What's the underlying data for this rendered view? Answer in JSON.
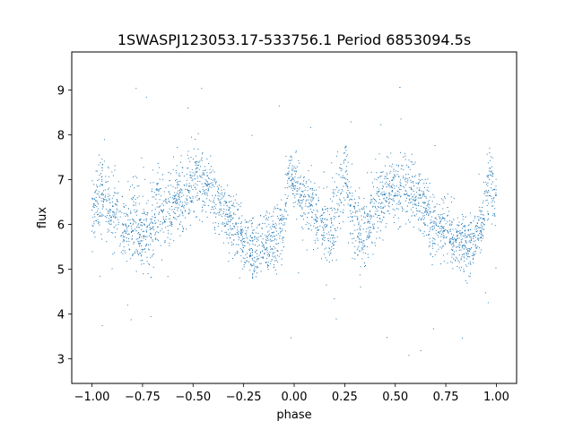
{
  "chart_data": {
    "type": "scatter",
    "title": "1SWASPJ123053.17-533756.1 Period 6853094.5s",
    "xlabel": "phase",
    "ylabel": "flux",
    "xlim": [
      -1.1,
      1.1
    ],
    "ylim": [
      2.45,
      9.85
    ],
    "xticks": [
      -1.0,
      -0.75,
      -0.5,
      -0.25,
      0.0,
      0.25,
      0.5,
      0.75,
      1.0
    ],
    "xtick_labels": [
      "−1.00",
      "−0.75",
      "−0.50",
      "−0.25",
      "0.00",
      "0.25",
      "0.50",
      "0.75",
      "1.00"
    ],
    "yticks": [
      3,
      4,
      5,
      6,
      7,
      8,
      9
    ],
    "ytick_labels": [
      "3",
      "4",
      "5",
      "6",
      "7",
      "8",
      "9"
    ],
    "grid": false,
    "legend": "none",
    "marker_color": "#1f77b4",
    "series": [
      {
        "x": [
          -0.99,
          -0.97,
          -0.95,
          -0.93,
          -0.9,
          -0.87,
          -0.85,
          -0.83,
          -0.8,
          -0.78,
          -0.76,
          -0.74,
          -0.72,
          -0.7,
          -0.68,
          -0.65,
          -0.63,
          -0.6,
          -0.58,
          -0.55,
          -0.52,
          -0.5,
          -0.47,
          -0.45,
          -0.42,
          -0.4,
          -0.37,
          -0.35,
          -0.32,
          -0.3,
          -0.27,
          -0.25,
          -0.22,
          -0.2,
          -0.17,
          -0.15,
          -0.12,
          -0.1,
          -0.07,
          -0.05,
          -0.03,
          -0.01,
          0.01,
          0.03,
          0.05,
          0.08,
          0.1,
          0.13,
          0.15,
          0.18,
          0.2,
          0.23,
          0.25,
          0.28,
          0.3,
          0.33,
          0.35,
          0.38,
          0.4,
          0.43,
          0.45,
          0.48,
          0.5,
          0.53,
          0.55,
          0.58,
          0.6,
          0.63,
          0.65,
          0.68,
          0.7,
          0.73,
          0.75,
          0.78,
          0.8,
          0.83,
          0.85,
          0.88,
          0.9,
          0.93,
          0.95,
          0.97,
          0.99
        ],
        "y": [
          6.3,
          6.5,
          6.7,
          6.6,
          6.4,
          6.2,
          5.8,
          5.9,
          6.0,
          6.1,
          5.9,
          5.8,
          5.7,
          6.0,
          6.3,
          6.4,
          6.2,
          6.5,
          6.7,
          6.6,
          6.8,
          6.9,
          7.0,
          6.9,
          6.8,
          6.6,
          6.5,
          6.3,
          6.1,
          5.9,
          5.7,
          5.6,
          5.5,
          5.4,
          5.4,
          5.5,
          5.6,
          5.7,
          5.8,
          6.0,
          7.0,
          7.1,
          6.9,
          6.6,
          6.5,
          6.4,
          6.2,
          6.0,
          5.9,
          5.8,
          6.2,
          6.5,
          7.3,
          6.3,
          6.0,
          5.8,
          5.9,
          6.2,
          6.4,
          6.6,
          6.7,
          6.8,
          6.9,
          6.8,
          6.9,
          6.7,
          6.6,
          6.5,
          6.3,
          6.1,
          5.9,
          5.8,
          6.0,
          5.7,
          5.6,
          5.5,
          5.4,
          5.6,
          5.8,
          6.0,
          6.5,
          7.0,
          6.6
        ],
        "spread": [
          0.8,
          0.9,
          0.9,
          0.8,
          0.8,
          0.9,
          0.8,
          0.8,
          0.9,
          1.1,
          1.0,
          0.9,
          0.9,
          1.0,
          0.9,
          0.9,
          0.9,
          0.8,
          0.8,
          0.8,
          0.8,
          0.8,
          0.8,
          0.7,
          0.7,
          0.7,
          0.7,
          0.7,
          0.7,
          0.8,
          0.7,
          0.6,
          0.6,
          0.6,
          0.7,
          0.7,
          0.7,
          0.7,
          0.7,
          0.7,
          0.6,
          0.6,
          0.6,
          0.7,
          0.7,
          0.8,
          0.8,
          0.8,
          0.8,
          0.8,
          0.9,
          0.9,
          0.8,
          0.8,
          0.8,
          0.8,
          0.8,
          0.8,
          0.8,
          0.8,
          0.7,
          0.7,
          0.7,
          0.7,
          0.7,
          0.7,
          0.7,
          0.7,
          0.7,
          0.8,
          0.7,
          0.6,
          0.7,
          0.6,
          0.6,
          0.6,
          0.6,
          0.6,
          0.7,
          0.8,
          0.7,
          0.7,
          0.6
        ]
      }
    ]
  }
}
